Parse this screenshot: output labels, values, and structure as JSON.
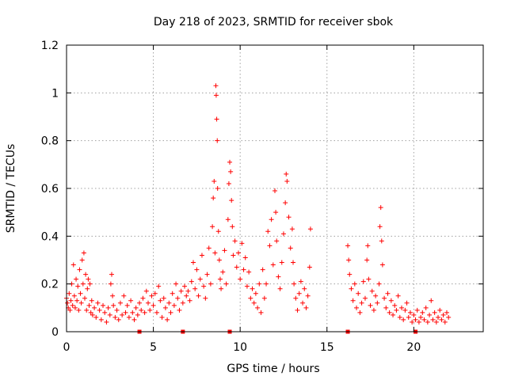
{
  "chart_data": {
    "type": "scatter",
    "title": "Day 218 of 2023, SRMTID for receiver sbok",
    "xlabel": "GPS time / hours",
    "ylabel": "SRMTID / TECUs",
    "xlim": [
      0,
      24
    ],
    "ylim": [
      0,
      1.2
    ],
    "xticks": [
      0,
      5,
      10,
      15,
      20
    ],
    "xtick_labels": [
      "0",
      "5",
      "10",
      "15",
      "20"
    ],
    "yticks": [
      0,
      0.2,
      0.4,
      0.6,
      0.8,
      1.0,
      1.2
    ],
    "ytick_labels": [
      "0",
      "0.2",
      "0.4",
      "0.6",
      "0.8",
      "1",
      "1.2"
    ],
    "grid": true,
    "marker": "plus",
    "color": "#ff0000",
    "gap_markers_x": [
      4.2,
      6.7,
      9.4,
      16.2,
      20.1
    ],
    "series": [
      {
        "name": "SRMTID",
        "points": [
          [
            0.0,
            0.14
          ],
          [
            0.05,
            0.12
          ],
          [
            0.1,
            0.1
          ],
          [
            0.15,
            0.16
          ],
          [
            0.2,
            0.09
          ],
          [
            0.25,
            0.13
          ],
          [
            0.3,
            0.2
          ],
          [
            0.35,
            0.11
          ],
          [
            0.4,
            0.28
          ],
          [
            0.45,
            0.15
          ],
          [
            0.5,
            0.1
          ],
          [
            0.55,
            0.22
          ],
          [
            0.6,
            0.13
          ],
          [
            0.65,
            0.19
          ],
          [
            0.7,
            0.09
          ],
          [
            0.75,
            0.26
          ],
          [
            0.8,
            0.16
          ],
          [
            0.85,
            0.12
          ],
          [
            0.9,
            0.3
          ],
          [
            0.95,
            0.2
          ],
          [
            1.0,
            0.33
          ],
          [
            1.05,
            0.14
          ],
          [
            1.1,
            0.24
          ],
          [
            1.15,
            0.09
          ],
          [
            1.2,
            0.18
          ],
          [
            1.25,
            0.22
          ],
          [
            1.3,
            0.11
          ],
          [
            1.35,
            0.2
          ],
          [
            1.4,
            0.08
          ],
          [
            1.45,
            0.13
          ],
          [
            1.5,
            0.07
          ],
          [
            1.6,
            0.1
          ],
          [
            1.7,
            0.06
          ],
          [
            1.8,
            0.12
          ],
          [
            1.9,
            0.09
          ],
          [
            2.0,
            0.05
          ],
          [
            2.1,
            0.11
          ],
          [
            2.2,
            0.08
          ],
          [
            2.3,
            0.04
          ],
          [
            2.4,
            0.1
          ],
          [
            2.5,
            0.07
          ],
          [
            2.55,
            0.2
          ],
          [
            2.6,
            0.24
          ],
          [
            2.65,
            0.15
          ],
          [
            2.7,
            0.11
          ],
          [
            2.8,
            0.06
          ],
          [
            2.9,
            0.09
          ],
          [
            3.0,
            0.05
          ],
          [
            3.1,
            0.12
          ],
          [
            3.2,
            0.07
          ],
          [
            3.3,
            0.15
          ],
          [
            3.4,
            0.08
          ],
          [
            3.5,
            0.11
          ],
          [
            3.6,
            0.06
          ],
          [
            3.7,
            0.13
          ],
          [
            3.8,
            0.08
          ],
          [
            3.9,
            0.05
          ],
          [
            4.0,
            0.1
          ],
          [
            4.1,
            0.07
          ],
          [
            4.2,
            0.12
          ],
          [
            4.3,
            0.09
          ],
          [
            4.4,
            0.14
          ],
          [
            4.5,
            0.08
          ],
          [
            4.6,
            0.17
          ],
          [
            4.7,
            0.12
          ],
          [
            4.8,
            0.09
          ],
          [
            4.9,
            0.15
          ],
          [
            5.0,
            0.11
          ],
          [
            5.1,
            0.16
          ],
          [
            5.2,
            0.08
          ],
          [
            5.3,
            0.19
          ],
          [
            5.4,
            0.13
          ],
          [
            5.5,
            0.06
          ],
          [
            5.6,
            0.14
          ],
          [
            5.7,
            0.1
          ],
          [
            5.8,
            0.05
          ],
          [
            5.9,
            0.12
          ],
          [
            6.0,
            0.08
          ],
          [
            6.1,
            0.16
          ],
          [
            6.2,
            0.11
          ],
          [
            6.3,
            0.2
          ],
          [
            6.4,
            0.14
          ],
          [
            6.5,
            0.09
          ],
          [
            6.6,
            0.17
          ],
          [
            6.7,
            0.12
          ],
          [
            6.8,
            0.19
          ],
          [
            6.9,
            0.15
          ],
          [
            7.0,
            0.17
          ],
          [
            7.1,
            0.13
          ],
          [
            7.2,
            0.21
          ],
          [
            7.3,
            0.29
          ],
          [
            7.4,
            0.18
          ],
          [
            7.5,
            0.26
          ],
          [
            7.6,
            0.15
          ],
          [
            7.7,
            0.22
          ],
          [
            7.8,
            0.32
          ],
          [
            7.9,
            0.19
          ],
          [
            8.0,
            0.14
          ],
          [
            8.1,
            0.24
          ],
          [
            8.2,
            0.35
          ],
          [
            8.3,
            0.2
          ],
          [
            8.4,
            0.44
          ],
          [
            8.45,
            0.56
          ],
          [
            8.5,
            0.63
          ],
          [
            8.55,
            0.33
          ],
          [
            8.6,
            1.03
          ],
          [
            8.62,
            0.99
          ],
          [
            8.65,
            0.89
          ],
          [
            8.68,
            0.8
          ],
          [
            8.7,
            0.6
          ],
          [
            8.75,
            0.42
          ],
          [
            8.8,
            0.3
          ],
          [
            8.85,
            0.22
          ],
          [
            8.9,
            0.18
          ],
          [
            9.0,
            0.25
          ],
          [
            9.1,
            0.34
          ],
          [
            9.2,
            0.2
          ],
          [
            9.3,
            0.47
          ],
          [
            9.35,
            0.62
          ],
          [
            9.4,
            0.71
          ],
          [
            9.45,
            0.67
          ],
          [
            9.5,
            0.55
          ],
          [
            9.55,
            0.44
          ],
          [
            9.6,
            0.32
          ],
          [
            9.7,
            0.38
          ],
          [
            9.8,
            0.27
          ],
          [
            9.9,
            0.33
          ],
          [
            10.0,
            0.22
          ],
          [
            10.1,
            0.37
          ],
          [
            10.2,
            0.26
          ],
          [
            10.3,
            0.31
          ],
          [
            10.4,
            0.19
          ],
          [
            10.5,
            0.25
          ],
          [
            10.6,
            0.14
          ],
          [
            10.7,
            0.18
          ],
          [
            10.8,
            0.12
          ],
          [
            10.9,
            0.16
          ],
          [
            11.0,
            0.1
          ],
          [
            11.1,
            0.2
          ],
          [
            11.2,
            0.08
          ],
          [
            11.3,
            0.26
          ],
          [
            11.4,
            0.14
          ],
          [
            11.5,
            0.2
          ],
          [
            11.6,
            0.42
          ],
          [
            11.7,
            0.36
          ],
          [
            11.8,
            0.47
          ],
          [
            11.9,
            0.28
          ],
          [
            12.0,
            0.59
          ],
          [
            12.05,
            0.5
          ],
          [
            12.1,
            0.38
          ],
          [
            12.2,
            0.23
          ],
          [
            12.3,
            0.18
          ],
          [
            12.4,
            0.29
          ],
          [
            12.5,
            0.41
          ],
          [
            12.6,
            0.54
          ],
          [
            12.65,
            0.66
          ],
          [
            12.7,
            0.63
          ],
          [
            12.8,
            0.48
          ],
          [
            12.9,
            0.35
          ],
          [
            13.0,
            0.43
          ],
          [
            13.05,
            0.29
          ],
          [
            13.1,
            0.2
          ],
          [
            13.2,
            0.14
          ],
          [
            13.3,
            0.09
          ],
          [
            13.4,
            0.16
          ],
          [
            13.5,
            0.21
          ],
          [
            13.6,
            0.12
          ],
          [
            13.7,
            0.18
          ],
          [
            13.8,
            0.1
          ],
          [
            13.9,
            0.15
          ],
          [
            14.0,
            0.27
          ],
          [
            14.05,
            0.43
          ],
          [
            16.2,
            0.36
          ],
          [
            16.25,
            0.3
          ],
          [
            16.3,
            0.24
          ],
          [
            16.4,
            0.18
          ],
          [
            16.5,
            0.13
          ],
          [
            16.6,
            0.2
          ],
          [
            16.7,
            0.1
          ],
          [
            16.8,
            0.16
          ],
          [
            16.9,
            0.08
          ],
          [
            17.0,
            0.12
          ],
          [
            17.1,
            0.21
          ],
          [
            17.2,
            0.14
          ],
          [
            17.3,
            0.3
          ],
          [
            17.35,
            0.36
          ],
          [
            17.4,
            0.22
          ],
          [
            17.5,
            0.11
          ],
          [
            17.6,
            0.17
          ],
          [
            17.7,
            0.09
          ],
          [
            17.8,
            0.15
          ],
          [
            17.9,
            0.12
          ],
          [
            18.0,
            0.2
          ],
          [
            18.05,
            0.44
          ],
          [
            18.1,
            0.52
          ],
          [
            18.15,
            0.38
          ],
          [
            18.2,
            0.28
          ],
          [
            18.3,
            0.14
          ],
          [
            18.4,
            0.1
          ],
          [
            18.5,
            0.16
          ],
          [
            18.6,
            0.08
          ],
          [
            18.7,
            0.13
          ],
          [
            18.8,
            0.07
          ],
          [
            18.9,
            0.11
          ],
          [
            19.0,
            0.09
          ],
          [
            19.1,
            0.15
          ],
          [
            19.2,
            0.06
          ],
          [
            19.3,
            0.1
          ],
          [
            19.4,
            0.05
          ],
          [
            19.5,
            0.09
          ],
          [
            19.6,
            0.12
          ],
          [
            19.7,
            0.06
          ],
          [
            19.8,
            0.08
          ],
          [
            19.9,
            0.04
          ],
          [
            20.0,
            0.07
          ],
          [
            20.1,
            0.05
          ],
          [
            20.2,
            0.09
          ],
          [
            20.3,
            0.04
          ],
          [
            20.4,
            0.06
          ],
          [
            20.5,
            0.08
          ],
          [
            20.6,
            0.05
          ],
          [
            20.7,
            0.1
          ],
          [
            20.8,
            0.04
          ],
          [
            20.9,
            0.07
          ],
          [
            21.0,
            0.13
          ],
          [
            21.1,
            0.05
          ],
          [
            21.2,
            0.08
          ],
          [
            21.3,
            0.04
          ],
          [
            21.4,
            0.06
          ],
          [
            21.5,
            0.09
          ],
          [
            21.6,
            0.05
          ],
          [
            21.7,
            0.07
          ],
          [
            21.8,
            0.04
          ],
          [
            21.9,
            0.08
          ],
          [
            22.0,
            0.06
          ]
        ]
      }
    ]
  }
}
